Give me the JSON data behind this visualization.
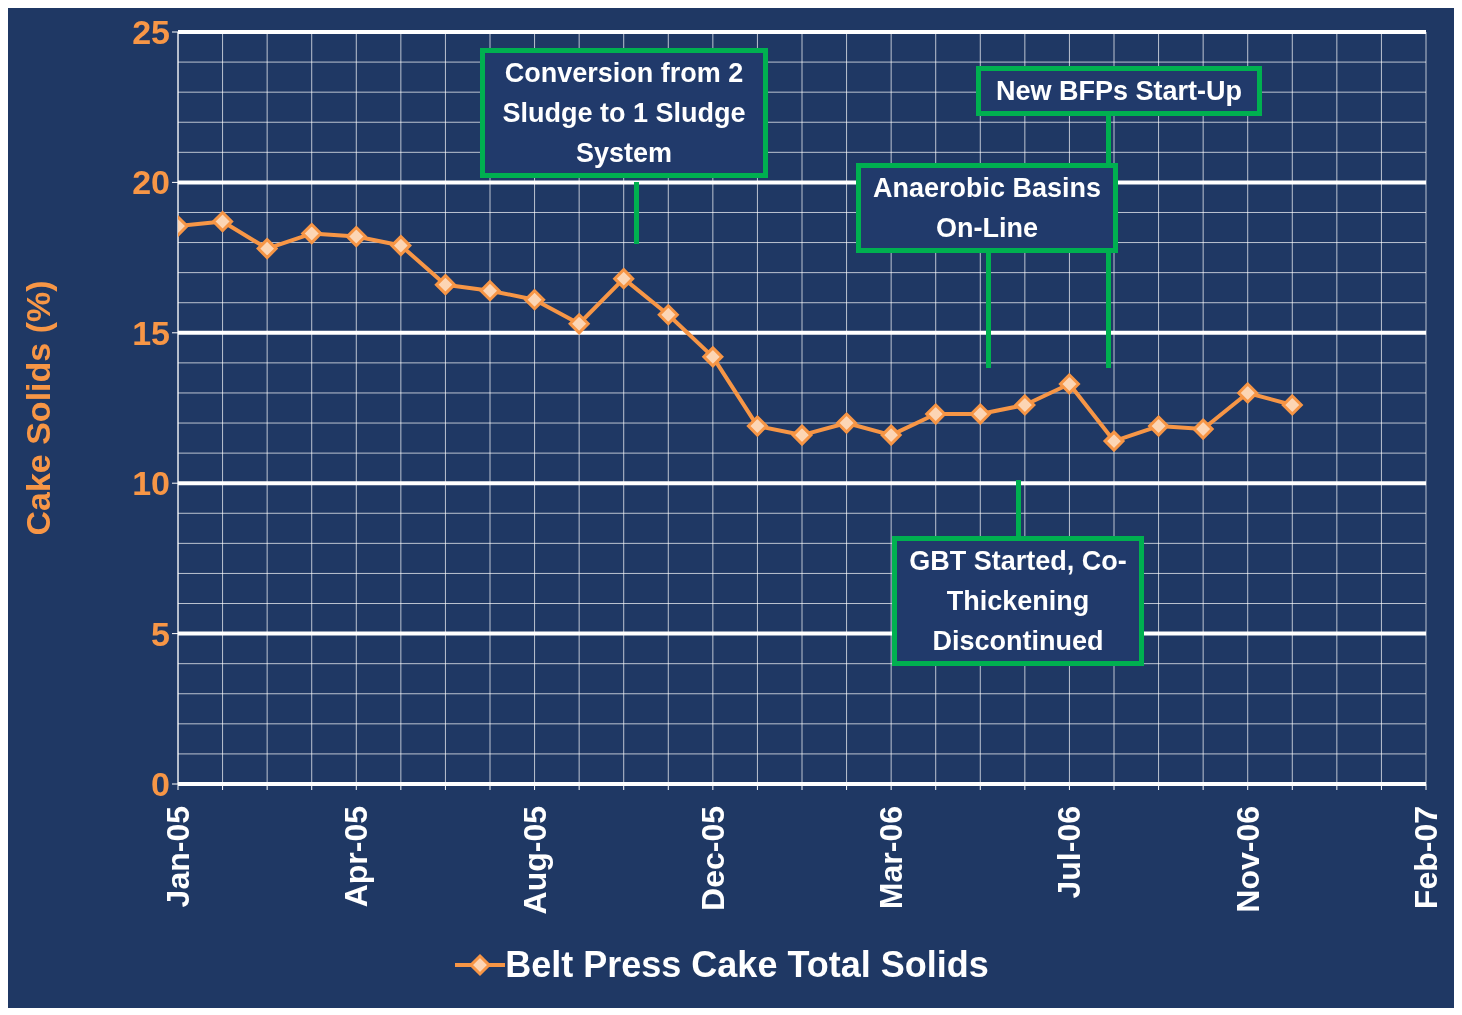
{
  "chart_data": {
    "type": "line",
    "ylabel": "Cake Solids (%)",
    "categories": [
      "Jan-05",
      null,
      null,
      null,
      "Apr-05",
      null,
      null,
      null,
      "Aug-05",
      null,
      null,
      null,
      "Dec-05",
      null,
      null,
      null,
      "Mar-06",
      null,
      null,
      null,
      "Jul-06",
      null,
      null,
      null,
      "Nov-06",
      null,
      null,
      null,
      "Feb-07"
    ],
    "series": [
      {
        "name": "Belt Press Cake Total Solids",
        "color": "#f79646",
        "values": [
          18.55,
          18.7,
          17.8,
          18.3,
          18.2,
          17.9,
          16.6,
          16.4,
          16.1,
          15.3,
          16.8,
          15.6,
          14.2,
          11.9,
          11.6,
          12.0,
          11.6,
          12.3,
          12.3,
          12.6,
          13.3,
          11.4,
          11.9,
          11.8,
          13.0,
          12.6,
          null,
          null,
          null
        ]
      }
    ],
    "ylim": [
      0,
      25
    ],
    "yticks": [
      0,
      5,
      10,
      15,
      20,
      25
    ],
    "grid": true,
    "legend": "bottom",
    "marker": "diamond",
    "line_style": "solid",
    "annotations": [
      "Conversion from 2 Sludge to 1 Sludge System",
      "New BFPs Start-Up",
      "Anaerobic Basins On-Line",
      "GBT Started, Co-Thickening Discontinued"
    ]
  }
}
